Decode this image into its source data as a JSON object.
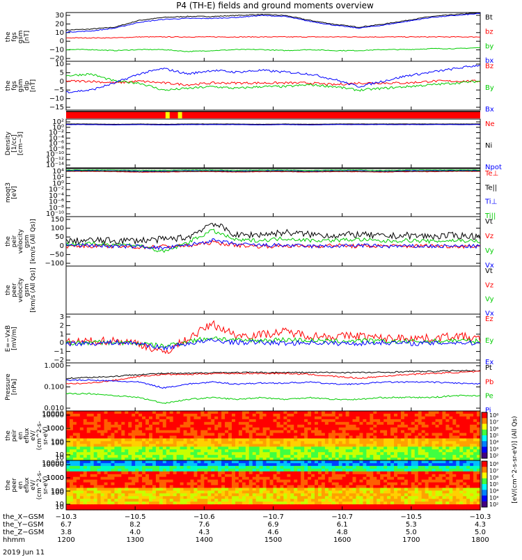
{
  "title": "P4 (TH-E) fields and ground moments overview",
  "date_label": "2019 Jun 11",
  "colors": {
    "black": "#000000",
    "red": "#ff0000",
    "green": "#00cc00",
    "blue": "#0000ff",
    "yellow": "#ffff00"
  },
  "chart_data": [
    {
      "type": "line",
      "panel": "fgs_gsm",
      "ylabel_lines": [
        "the",
        "fgs",
        "gsm",
        "[nT]"
      ],
      "ylim": [
        -20,
        30
      ],
      "yticks": [
        "30",
        "20",
        "10",
        "0",
        "−10",
        "−20"
      ],
      "series": [
        {
          "name": "Bt",
          "color": "#000000",
          "values": [
            12,
            13,
            15,
            22,
            25,
            26,
            26,
            27,
            28,
            27,
            22,
            18,
            15,
            18,
            22,
            26,
            28,
            30
          ]
        },
        {
          "name": "bz",
          "color": "#ff0000",
          "values": [
            4,
            4,
            4,
            5,
            5,
            5,
            5,
            5,
            5,
            5,
            5,
            5,
            5,
            5,
            5,
            5,
            5,
            5
          ]
        },
        {
          "name": "by",
          "color": "#00cc00",
          "values": [
            -8,
            -8,
            -9,
            -8,
            -8,
            -10,
            -9,
            -8,
            -8,
            -9,
            -8,
            -9,
            -9,
            -8,
            -8,
            -7,
            -7,
            -6
          ]
        },
        {
          "name": "bx",
          "color": "#0000ff",
          "values": [
            10,
            11,
            14,
            20,
            23,
            24,
            24,
            25,
            27,
            26,
            21,
            17,
            14,
            17,
            21,
            25,
            27,
            29
          ]
        }
      ]
    },
    {
      "type": "line",
      "panel": "fgs_gsm_dlp",
      "ylabel_lines": [
        "the",
        "fgs",
        "gsm",
        "dlp",
        "[nT]"
      ],
      "ylim": [
        -17,
        10
      ],
      "yticks": [
        "10",
        "5",
        "0",
        "−5",
        "−10",
        "−15"
      ],
      "series": [
        {
          "name": "Bz",
          "color": "#ff0000",
          "values": [
            -1,
            -1,
            -2,
            -1,
            -2,
            -3,
            -2,
            -2,
            -2,
            -2,
            -2,
            -3,
            -2,
            -2,
            -2,
            -1,
            -1,
            -1
          ]
        },
        {
          "name": "By",
          "color": "#00cc00",
          "values": [
            2,
            3,
            -1,
            -2,
            -6,
            -5,
            -4,
            -5,
            -4,
            -4,
            -3,
            -4,
            -6,
            -5,
            -4,
            -3,
            -2,
            -1
          ]
        },
        {
          "name": "Bx",
          "color": "#0000ff",
          "values": [
            -7,
            -6,
            -2,
            3,
            6,
            3,
            5,
            4,
            5,
            4,
            3,
            0,
            -4,
            -1,
            2,
            4,
            6,
            8
          ]
        }
      ]
    },
    {
      "type": "line",
      "panel": "density",
      "ylabel_lines": [
        "Density",
        "[1/cc]",
        "[cm−3]"
      ],
      "ylim": [
        -14,
        2
      ],
      "yscale": "log",
      "yticks": [
        "10²",
        "10⁰",
        "10⁻²",
        "10⁻⁴",
        "10⁻⁶",
        "10⁻⁸",
        "10⁻¹⁰",
        "10⁻¹²",
        "10⁻¹⁴"
      ],
      "series": [
        {
          "name": "Ne",
          "color": "#ff0000",
          "values": [
            0.3,
            0.3,
            0.2,
            0.3,
            0.2,
            0.3,
            0.3,
            0.3,
            0.2,
            0.3,
            0.2,
            0.3,
            0.3,
            0.3,
            0.3,
            0.3,
            0.3,
            0.3
          ]
        },
        {
          "name": "Ni",
          "color": "#000000",
          "values": [
            0.4,
            0.4,
            0.3,
            0.4,
            0.3,
            0.4,
            0.4,
            0.4,
            0.3,
            0.4,
            0.3,
            0.4,
            0.4,
            0.4,
            0.4,
            0.4,
            0.4,
            0.4
          ]
        },
        {
          "name": "Npot",
          "color": "#0000ff",
          "values": [
            0.2,
            0.2,
            0.1,
            0.2,
            0.1,
            0.2,
            0.2,
            0.2,
            0.1,
            0.2,
            0.1,
            0.2,
            0.2,
            0.2,
            0.2,
            0.2,
            0.2,
            0.2
          ]
        }
      ]
    },
    {
      "type": "line",
      "panel": "temperature",
      "ylabel_lines": [
        "moqt3",
        "[eV]"
      ],
      "ylim": [
        -10,
        4
      ],
      "yscale": "log",
      "yticks": [
        "10⁴",
        "10²",
        "10⁰",
        "10⁻²",
        "10⁻⁴",
        "10⁻⁶",
        "10⁻⁸",
        "10⁻¹⁰"
      ],
      "series": [
        {
          "name": "Te⊥",
          "color": "#ff0000",
          "values": [
            3.2,
            3.2,
            3.1,
            3.0,
            3.0,
            3.1,
            3.1,
            3.0,
            3.1,
            3.1,
            3.0,
            3.1,
            3.1,
            3.0,
            3.1,
            3.1,
            3.2,
            3.2
          ]
        },
        {
          "name": "Te||",
          "color": "#000000",
          "values": [
            3.3,
            3.3,
            3.2,
            3.1,
            3.1,
            3.2,
            3.2,
            3.1,
            3.2,
            3.2,
            3.1,
            3.2,
            3.2,
            3.1,
            3.2,
            3.2,
            3.3,
            3.3
          ]
        },
        {
          "name": "Ti⊥",
          "color": "#0000ff",
          "values": [
            3.5,
            3.5,
            3.5,
            3.4,
            3.4,
            3.5,
            3.5,
            3.4,
            3.5,
            3.5,
            3.4,
            3.5,
            3.5,
            3.4,
            3.5,
            3.5,
            3.5,
            3.5
          ]
        },
        {
          "name": "Ti||",
          "color": "#00cc00",
          "values": [
            3.6,
            3.6,
            3.6,
            3.5,
            3.5,
            3.6,
            3.6,
            3.5,
            3.6,
            3.6,
            3.5,
            3.6,
            3.6,
            3.5,
            3.6,
            3.6,
            3.6,
            3.6
          ]
        }
      ]
    },
    {
      "type": "line",
      "panel": "peir_velocity",
      "ylabel_lines": [
        "the",
        "peir",
        "velocity",
        "gsm",
        "[km/s (All Qs)]"
      ],
      "ylim": [
        -100,
        150
      ],
      "yticks": [
        "150",
        "100",
        "50",
        "0",
        "−50",
        "−100"
      ],
      "series": [
        {
          "name": "Vt",
          "color": "#000000",
          "values": [
            25,
            30,
            28,
            30,
            35,
            45,
            120,
            55,
            60,
            70,
            60,
            55,
            60,
            50,
            55,
            50,
            55,
            50
          ]
        },
        {
          "name": "Vz",
          "color": "#ff0000",
          "values": [
            0,
            2,
            0,
            -5,
            0,
            2,
            20,
            5,
            0,
            2,
            0,
            5,
            0,
            2,
            0,
            3,
            0,
            2
          ]
        },
        {
          "name": "Vy",
          "color": "#00cc00",
          "values": [
            10,
            12,
            10,
            5,
            -30,
            20,
            80,
            30,
            30,
            40,
            30,
            30,
            35,
            25,
            30,
            25,
            30,
            25
          ]
        },
        {
          "name": "Vx",
          "color": "#0000ff",
          "values": [
            5,
            5,
            0,
            0,
            -10,
            5,
            30,
            10,
            5,
            5,
            0,
            0,
            5,
            0,
            0,
            0,
            0,
            0
          ]
        }
      ]
    },
    {
      "type": "line",
      "panel": "peer_velocity",
      "ylabel_lines": [
        "the",
        "peer",
        "velocity",
        "gsm",
        "[km/s (All Qs)]"
      ],
      "series": [
        {
          "name": "Vt",
          "color": "#000000",
          "values": []
        },
        {
          "name": "Vz",
          "color": "#ff0000",
          "values": []
        },
        {
          "name": "Vy",
          "color": "#00cc00",
          "values": []
        },
        {
          "name": "Vx",
          "color": "#0000ff",
          "values": []
        }
      ]
    },
    {
      "type": "line",
      "panel": "efield",
      "ylabel_lines": [
        "E=−VxB",
        "[mV/m]"
      ],
      "ylim": [
        -2,
        3
      ],
      "yticks": [
        "3",
        "2",
        "1",
        "0",
        "−1",
        "−2"
      ],
      "series": [
        {
          "name": "Ez",
          "color": "#ff0000",
          "values": [
            0.1,
            0.2,
            0.3,
            0.0,
            -1.0,
            0.5,
            2.0,
            0.8,
            0.9,
            1.2,
            0.8,
            0.7,
            0.8,
            0.5,
            0.6,
            0.5,
            0.8,
            0.4
          ]
        },
        {
          "name": "Ey",
          "color": "#00cc00",
          "values": [
            0.0,
            0.1,
            0.1,
            0.0,
            -0.3,
            0.2,
            0.6,
            0.3,
            0.3,
            0.4,
            0.3,
            0.2,
            0.3,
            0.2,
            0.2,
            0.2,
            0.3,
            0.2
          ]
        },
        {
          "name": "Ex",
          "color": "#0000ff",
          "values": [
            0.0,
            0.0,
            0.1,
            0.0,
            -0.5,
            0.0,
            0.3,
            0.1,
            0.1,
            0.0,
            0.1,
            0.0,
            0.0,
            0.1,
            0.0,
            0.0,
            0.1,
            0.0
          ]
        }
      ]
    },
    {
      "type": "line",
      "panel": "pressure",
      "ylabel_lines": [
        "Pressure",
        "[nPa]"
      ],
      "ylim": [
        -2.5,
        0
      ],
      "yscale": "log",
      "yticks": [
        "1.000",
        "0.100",
        "0.010"
      ],
      "series": [
        {
          "name": "Pt",
          "color": "#000000",
          "values": [
            -0.8,
            -0.75,
            -0.7,
            -0.6,
            -0.55,
            -0.55,
            -0.5,
            -0.5,
            -0.5,
            -0.5,
            -0.5,
            -0.5,
            -0.5,
            -0.5,
            -0.45,
            -0.45,
            -0.4,
            -0.4
          ]
        },
        {
          "name": "Pb",
          "color": "#ff0000",
          "values": [
            -1.1,
            -1.05,
            -0.9,
            -0.7,
            -0.6,
            -0.6,
            -0.55,
            -0.55,
            -0.55,
            -0.55,
            -0.6,
            -0.7,
            -0.8,
            -0.7,
            -0.6,
            -0.55,
            -0.5,
            -0.45
          ]
        },
        {
          "name": "Pe",
          "color": "#00cc00",
          "values": [
            -1.6,
            -1.6,
            -1.7,
            -1.8,
            -2.1,
            -1.9,
            -1.8,
            -1.9,
            -1.8,
            -1.9,
            -1.8,
            -1.9,
            -1.9,
            -1.8,
            -1.8,
            -1.8,
            -1.7,
            -1.7
          ]
        },
        {
          "name": "Pi",
          "color": "#0000ff",
          "values": [
            -0.9,
            -0.9,
            -0.95,
            -1.0,
            -1.3,
            -1.1,
            -1.0,
            -1.1,
            -1.05,
            -1.05,
            -1.0,
            -1.1,
            -1.1,
            -1.0,
            -1.0,
            -1.0,
            -1.05,
            -1.1
          ]
        }
      ]
    },
    {
      "type": "heatmap",
      "panel": "peir_eflux",
      "ylabel_lines": [
        "the",
        "peir",
        "en",
        "eflux",
        "eV/",
        "(cm^2-s-",
        "sr-eV)"
      ],
      "yscale": "log",
      "yticks": [
        "10000",
        "1000",
        "100",
        "10"
      ]
    },
    {
      "type": "heatmap",
      "panel": "peer_eflux",
      "ylabel_lines": [
        "the",
        "peer",
        "en",
        "eflux",
        "eV/",
        "(cm^2-s-",
        "sr-eV)"
      ],
      "yscale": "log",
      "yticks": [
        "10000",
        "1000",
        "100",
        "10"
      ]
    }
  ],
  "right_labels": {
    "fgs_gsm": [
      "Bt",
      "bz",
      "by",
      "bx"
    ],
    "fgs_gsm_dlp": [
      "Bz",
      "By",
      "Bx"
    ],
    "density": [
      "Ne",
      "Ni",
      "Npot"
    ],
    "temperature": [
      "Te⊥",
      "Te||",
      "Ti⊥",
      "Ti||"
    ],
    "peir_velocity": [
      "Vt",
      "Vz",
      "Vy",
      "Vx"
    ],
    "peer_velocity": [
      "Vt",
      "Vz",
      "Vy",
      "Vx"
    ],
    "efield": [
      "Ez",
      "Ey",
      "Ex"
    ],
    "pressure": [
      "Pt",
      "Pb",
      "Pe",
      "Pi"
    ]
  },
  "colorbar": {
    "label": "[eV/(cm^2-s-sr-eV)] (All Qs)",
    "ticks_top": [
      "10⁸",
      "10⁷",
      "10⁶",
      "10⁵",
      "10⁴",
      "10³",
      "10²"
    ],
    "ticks_bottom": [
      "10⁸",
      "10⁷",
      "10⁶",
      "10⁵",
      "10⁴",
      "10³",
      "10²"
    ]
  },
  "x_axis": {
    "row_labels": [
      "the_X−GSM",
      "the_Y−GSM",
      "the_Z−GSM",
      "hhmm"
    ],
    "columns": [
      [
        "−10.3",
        "6.7",
        "3.8",
        "1200"
      ],
      [
        "−10.5",
        "8.2",
        "4.0",
        "1300"
      ],
      [
        "−10.6",
        "7.6",
        "4.3",
        "1400"
      ],
      [
        "−10.7",
        "6.9",
        "4.6",
        "1500"
      ],
      [
        "−10.7",
        "6.1",
        "4.8",
        "1600"
      ],
      [
        "−10.5",
        "5.3",
        "5.0",
        "1700"
      ],
      [
        "−10.3",
        "4.3",
        "5.0",
        "1800"
      ]
    ]
  }
}
